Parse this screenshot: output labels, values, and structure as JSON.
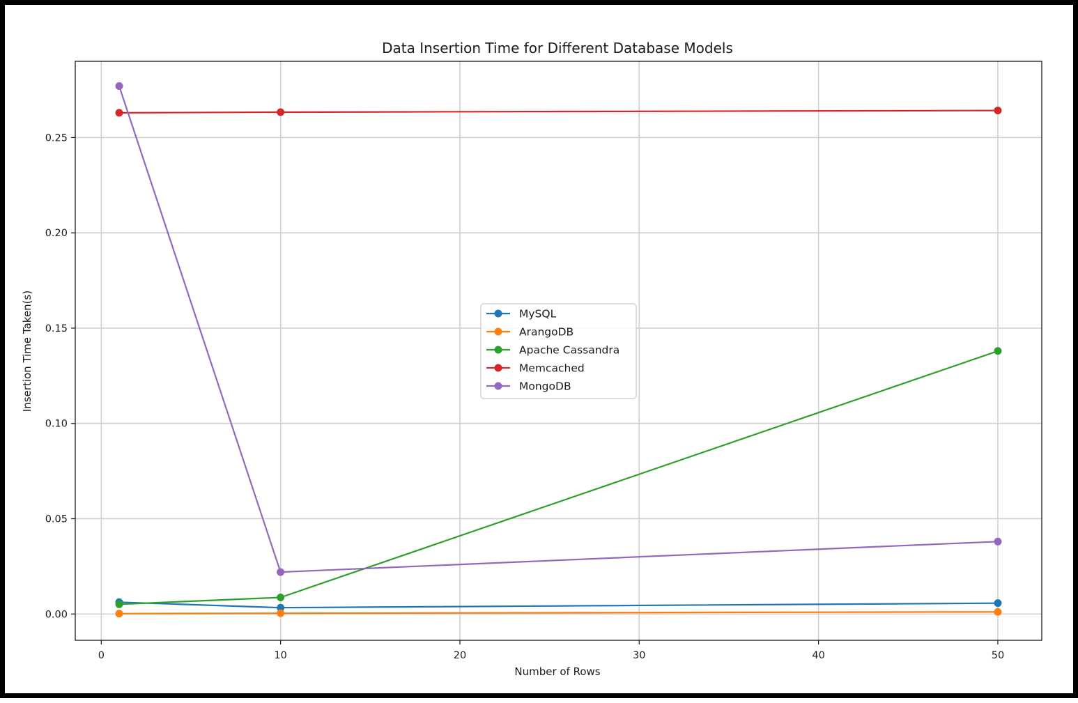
{
  "chart_data": {
    "type": "line",
    "title": "Data Insertion Time for Different Database Models",
    "xlabel": "Number of Rows",
    "ylabel": "Insertion Time Taken(s)",
    "x": [
      1,
      10,
      50
    ],
    "xlim": [
      -1.45,
      52.45
    ],
    "ylim": [
      -0.0138,
      0.29
    ],
    "xticks": [
      0,
      10,
      20,
      30,
      40,
      50
    ],
    "yticks": [
      0.0,
      0.05,
      0.1,
      0.15,
      0.2,
      0.25
    ],
    "xtick_labels": [
      "0",
      "10",
      "20",
      "30",
      "40",
      "50"
    ],
    "ytick_labels": [
      "0.00",
      "0.05",
      "0.10",
      "0.15",
      "0.20",
      "0.25"
    ],
    "grid": true,
    "legend_position": "center",
    "marker": "circle",
    "series": [
      {
        "name": "MySQL",
        "color": "#1f77b4",
        "values": [
          0.0062,
          0.0033,
          0.0057
        ]
      },
      {
        "name": "ArangoDB",
        "color": "#ff7f0e",
        "values": [
          0.0002,
          0.0004,
          0.0011
        ]
      },
      {
        "name": "Apache Cassandra",
        "color": "#2ca02c",
        "values": [
          0.0051,
          0.0087,
          0.138
        ]
      },
      {
        "name": "Memcached",
        "color": "#d62728",
        "values": [
          0.263,
          0.2633,
          0.2642
        ]
      },
      {
        "name": "MongoDB",
        "color": "#9467bd",
        "values": [
          0.277,
          0.022,
          0.038
        ]
      }
    ]
  }
}
